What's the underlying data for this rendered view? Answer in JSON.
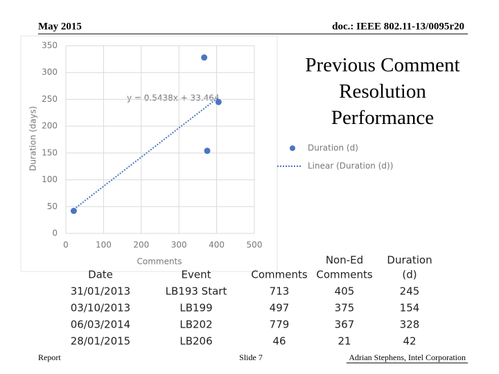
{
  "header": {
    "left": "May 2015",
    "right": "doc.: IEEE 802.11-13/0095r20"
  },
  "title": "Previous Comment Resolution Performance",
  "chart_data": {
    "type": "scatter",
    "x_label": "Comments",
    "y_label": "Duration (days)",
    "series": [
      {
        "name": "Duration (d)",
        "color": "#4a76c0",
        "x": [
          405,
          375,
          367,
          21
        ],
        "values": [
          245,
          154,
          328,
          42
        ]
      }
    ],
    "trendline": {
      "name": "Linear (Duration (d))",
      "label": "y = 0.5438x + 33.464",
      "slope": 0.5438,
      "intercept": 33.464
    },
    "xlim": [
      0,
      500
    ],
    "xticks": [
      0,
      100,
      200,
      300,
      400,
      500
    ],
    "ylim": [
      0,
      350
    ],
    "yticks": [
      0,
      50,
      100,
      150,
      200,
      250,
      300,
      350
    ],
    "grid": true
  },
  "table": {
    "header": [
      [
        "Date"
      ],
      [
        "Event"
      ],
      [
        "Comments"
      ],
      [
        "Non-Ed",
        "Comments"
      ],
      [
        "Duration",
        "(d)"
      ]
    ],
    "rows": [
      [
        "31/01/2013",
        "LB193 Start",
        "713",
        "405",
        "245"
      ],
      [
        "03/10/2013",
        "LB199",
        "497",
        "375",
        "154"
      ],
      [
        "06/03/2014",
        "LB202",
        "779",
        "367",
        "328"
      ],
      [
        "28/01/2015",
        "LB206",
        "46",
        "21",
        "42"
      ]
    ]
  },
  "footer": {
    "left": "Report",
    "center": "Slide 7",
    "right": "Adrian Stephens, Intel Corporation"
  }
}
